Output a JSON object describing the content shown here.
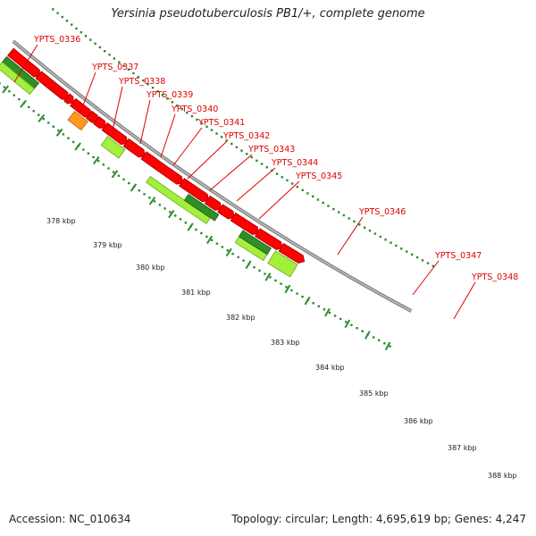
{
  "header": {
    "title": "Yersinia pseudotuberculosis PB1/+, complete genome"
  },
  "footer": {
    "accession": "Accession: NC_010634",
    "topology": "Topology: circular; Length: 4,695,619 bp; Genes: 4,247"
  },
  "colors": {
    "cds": "#ff0000",
    "cds_shade": "#b00000",
    "light_green": "#a4ef3c",
    "dark_green": "#2f8f26",
    "orange": "#ff9a1e",
    "backbone": "#888888",
    "ticks": "#2e8b2e",
    "label": "#e00000"
  },
  "gene_labels": [
    "YPTS_0336",
    "YPTS_0337",
    "YPTS_0338",
    "YPTS_0339",
    "YPTS_0340",
    "YPTS_0341",
    "YPTS_0342",
    "YPTS_0343",
    "YPTS_0344",
    "YPTS_0345",
    "YPTS_0346",
    "YPTS_0347",
    "YPTS_0348"
  ],
  "kbp_labels": [
    "378 kbp",
    "379 kbp",
    "380 kbp",
    "381 kbp",
    "382 kbp",
    "383 kbp",
    "384 kbp",
    "385 kbp",
    "386 kbp",
    "387 kbp",
    "388 kbp"
  ]
}
